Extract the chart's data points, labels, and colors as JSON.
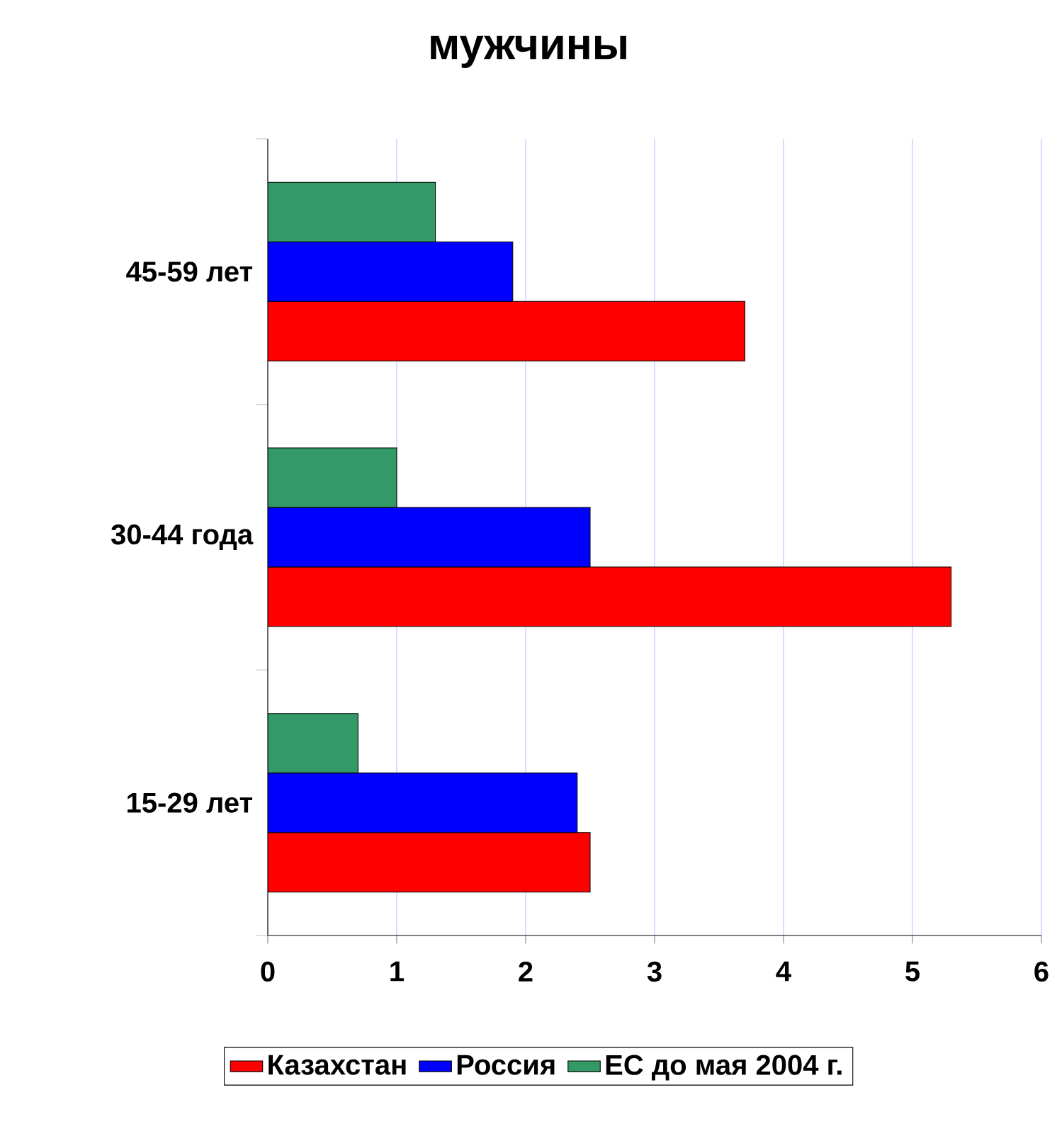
{
  "chart_data": {
    "type": "bar",
    "orientation": "horizontal",
    "title": "мужчины",
    "categories": [
      "45-59 лет",
      "30-44 года",
      "15-29 лет"
    ],
    "series": [
      {
        "name": "Казахстан",
        "color": "#ff0000",
        "values": [
          3.7,
          5.3,
          2.5
        ]
      },
      {
        "name": "Россия",
        "color": "#0000ff",
        "values": [
          1.9,
          2.5,
          2.4
        ]
      },
      {
        "name": "ЕС до мая 2004 г.",
        "color": "#339966",
        "values": [
          1.3,
          1.0,
          0.7
        ]
      }
    ],
    "xlim": [
      0,
      6
    ],
    "xticks": [
      0,
      1,
      2,
      3,
      4,
      5,
      6
    ],
    "grid": "x",
    "legend": "bottom"
  }
}
